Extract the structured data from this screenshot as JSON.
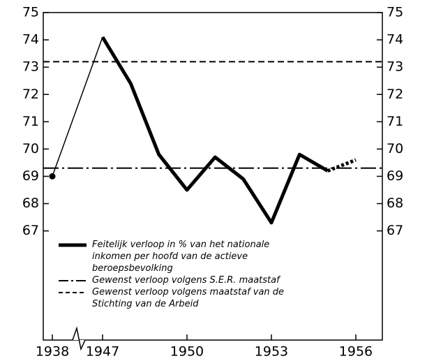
{
  "chart_data": {
    "type": "line",
    "categories": [
      "1938",
      "1947",
      null,
      null,
      "1950",
      null,
      null,
      "1953",
      null,
      null,
      "1956"
    ],
    "series": [
      {
        "name": "Feitelijk verloop in % van het nationale inkomen per hoofd van de actieve beroepsbevolking",
        "color": "#000000",
        "values": [
          69.0,
          74.1,
          72.4,
          69.8,
          68.5,
          69.7,
          68.9,
          67.3,
          69.8,
          69.2,
          69.6
        ]
      }
    ],
    "reference_lines": [
      {
        "name": "Gewenst verloop volgens S.E.R. maatstaf",
        "value": 69.3,
        "style": "dashdot"
      },
      {
        "name": "Gewenst verloop volgens maatstaf van de Stichting van de Arbeid",
        "value": 73.2,
        "style": "dashed"
      }
    ],
    "ylim": [
      63,
      75
    ],
    "yticks": [
      67,
      68,
      69,
      70,
      71,
      72,
      73,
      74,
      75
    ],
    "grid": false
  }
}
